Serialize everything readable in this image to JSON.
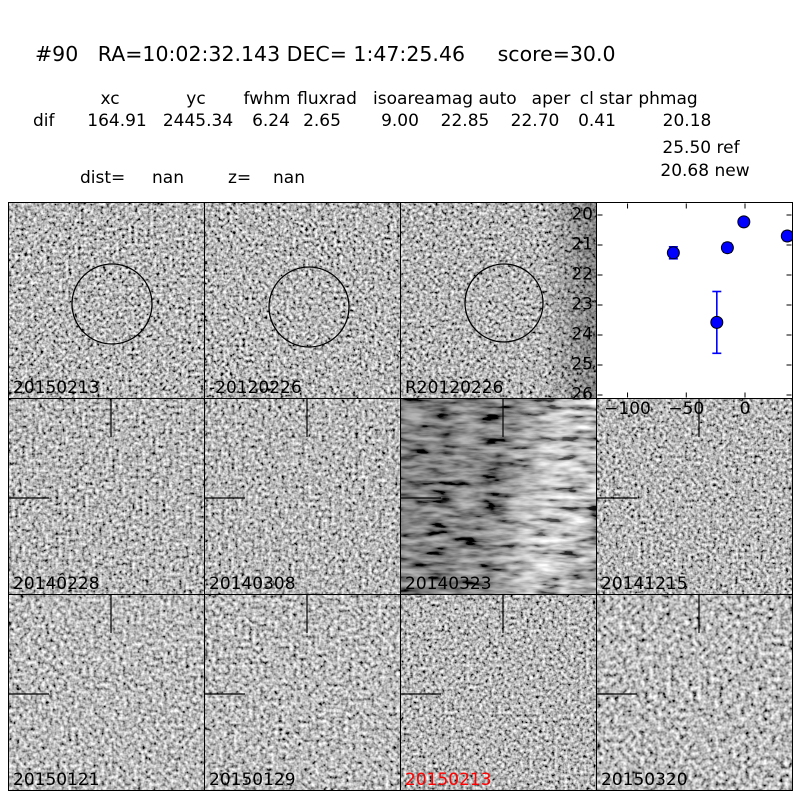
{
  "header": {
    "title": "#90   RA=10:02:32.143 DEC= 1:47:25.46     score=30.0"
  },
  "photometry": {
    "row_label": "dif",
    "columns": [
      "xc",
      "yc",
      "fwhm",
      "fluxrad",
      "isoarea",
      "mag auto",
      "aper",
      "cl star",
      "phmag"
    ],
    "values": [
      "164.91",
      "2445.34",
      "6.24",
      "2.65",
      "9.00",
      "22.85",
      "22.70",
      "0.41",
      "20.18"
    ],
    "ref_mag": "25.50 ref",
    "new_mag": "20.68 new"
  },
  "distance": {
    "dist_label": "dist=",
    "dist_value": "nan",
    "z_label": "z=",
    "z_value": "nan"
  },
  "stamps": [
    {
      "label": "20150213",
      "marker": "circle",
      "label_color": "#000000"
    },
    {
      "label": "-20120226",
      "marker": "circle",
      "label_color": "#000000"
    },
    {
      "label": "R20120226",
      "marker": "circle",
      "label_color": "#000000"
    },
    {
      "label": "20140228",
      "marker": "crosshair",
      "label_color": "#000000"
    },
    {
      "label": "20140308",
      "marker": "crosshair",
      "label_color": "#000000"
    },
    {
      "label": "20140323",
      "marker": "crosshair",
      "label_color": "#000000"
    },
    {
      "label": "20141215",
      "marker": "crosshair",
      "label_color": "#000000"
    },
    {
      "label": "20150121",
      "marker": "crosshair",
      "label_color": "#000000"
    },
    {
      "label": "20150129",
      "marker": "crosshair",
      "label_color": "#000000"
    },
    {
      "label": "20150213",
      "marker": "crosshair",
      "label_color": "#ff0000"
    },
    {
      "label": "20150320",
      "marker": "crosshair",
      "label_color": "#000000"
    }
  ],
  "chart_data": {
    "type": "scatter",
    "title": "",
    "xlabel": "",
    "ylabel": "",
    "xlim": [
      -126,
      40
    ],
    "ylim": [
      19.6,
      26.1
    ],
    "y_inverted": true,
    "xticks": [
      -100,
      -50,
      0
    ],
    "yticks": [
      20,
      21,
      22,
      23,
      24,
      25,
      26
    ],
    "grid": false,
    "legend": "none",
    "marker_color": "#0000ff",
    "marker_edge_color": "#000000",
    "series": [
      {
        "name": "lightcurve_mag_vs_epoch",
        "points": [
          {
            "x": -61,
            "y": 21.26,
            "yerr": 0.2
          },
          {
            "x": -24,
            "y": 23.58,
            "yerr": 1.03
          },
          {
            "x": -15,
            "y": 21.09,
            "yerr": 0.15
          },
          {
            "x": -1,
            "y": 20.23,
            "yerr": 0.08
          },
          {
            "x": 36,
            "y": 20.7,
            "yerr": 0.15
          }
        ]
      }
    ]
  }
}
